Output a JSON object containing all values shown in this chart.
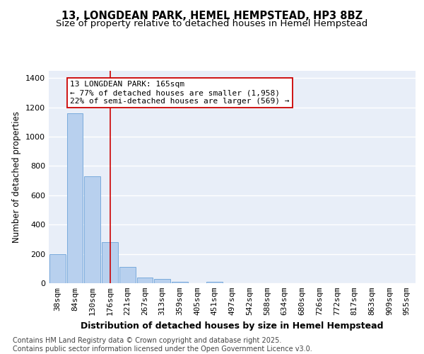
{
  "title_line1": "13, LONGDEAN PARK, HEMEL HEMPSTEAD, HP3 8BZ",
  "title_line2": "Size of property relative to detached houses in Hemel Hempstead",
  "xlabel": "Distribution of detached houses by size in Hemel Hempstead",
  "ylabel": "Number of detached properties",
  "categories": [
    "38sqm",
    "84sqm",
    "130sqm",
    "176sqm",
    "221sqm",
    "267sqm",
    "313sqm",
    "359sqm",
    "405sqm",
    "451sqm",
    "497sqm",
    "542sqm",
    "588sqm",
    "634sqm",
    "680sqm",
    "726sqm",
    "772sqm",
    "817sqm",
    "863sqm",
    "909sqm",
    "955sqm"
  ],
  "values": [
    200,
    1160,
    730,
    280,
    110,
    40,
    30,
    10,
    0,
    10,
    0,
    0,
    0,
    0,
    0,
    0,
    0,
    0,
    0,
    0,
    0
  ],
  "bar_color": "#b8d0ee",
  "bar_edge_color": "#7aabdc",
  "vline_x": 3,
  "vline_color": "#cc0000",
  "annotation_text": "13 LONGDEAN PARK: 165sqm\n← 77% of detached houses are smaller (1,958)\n22% of semi-detached houses are larger (569) →",
  "box_color": "#cc0000",
  "ylim": [
    0,
    1450
  ],
  "yticks": [
    0,
    200,
    400,
    600,
    800,
    1000,
    1200,
    1400
  ],
  "bg_color": "#e8eef8",
  "footer_text": "Contains HM Land Registry data © Crown copyright and database right 2025.\nContains public sector information licensed under the Open Government Licence v3.0.",
  "title_fontsize": 10.5,
  "subtitle_fontsize": 9.5,
  "xlabel_fontsize": 9,
  "ylabel_fontsize": 8.5,
  "tick_fontsize": 8,
  "footer_fontsize": 7,
  "ann_fontsize": 8
}
